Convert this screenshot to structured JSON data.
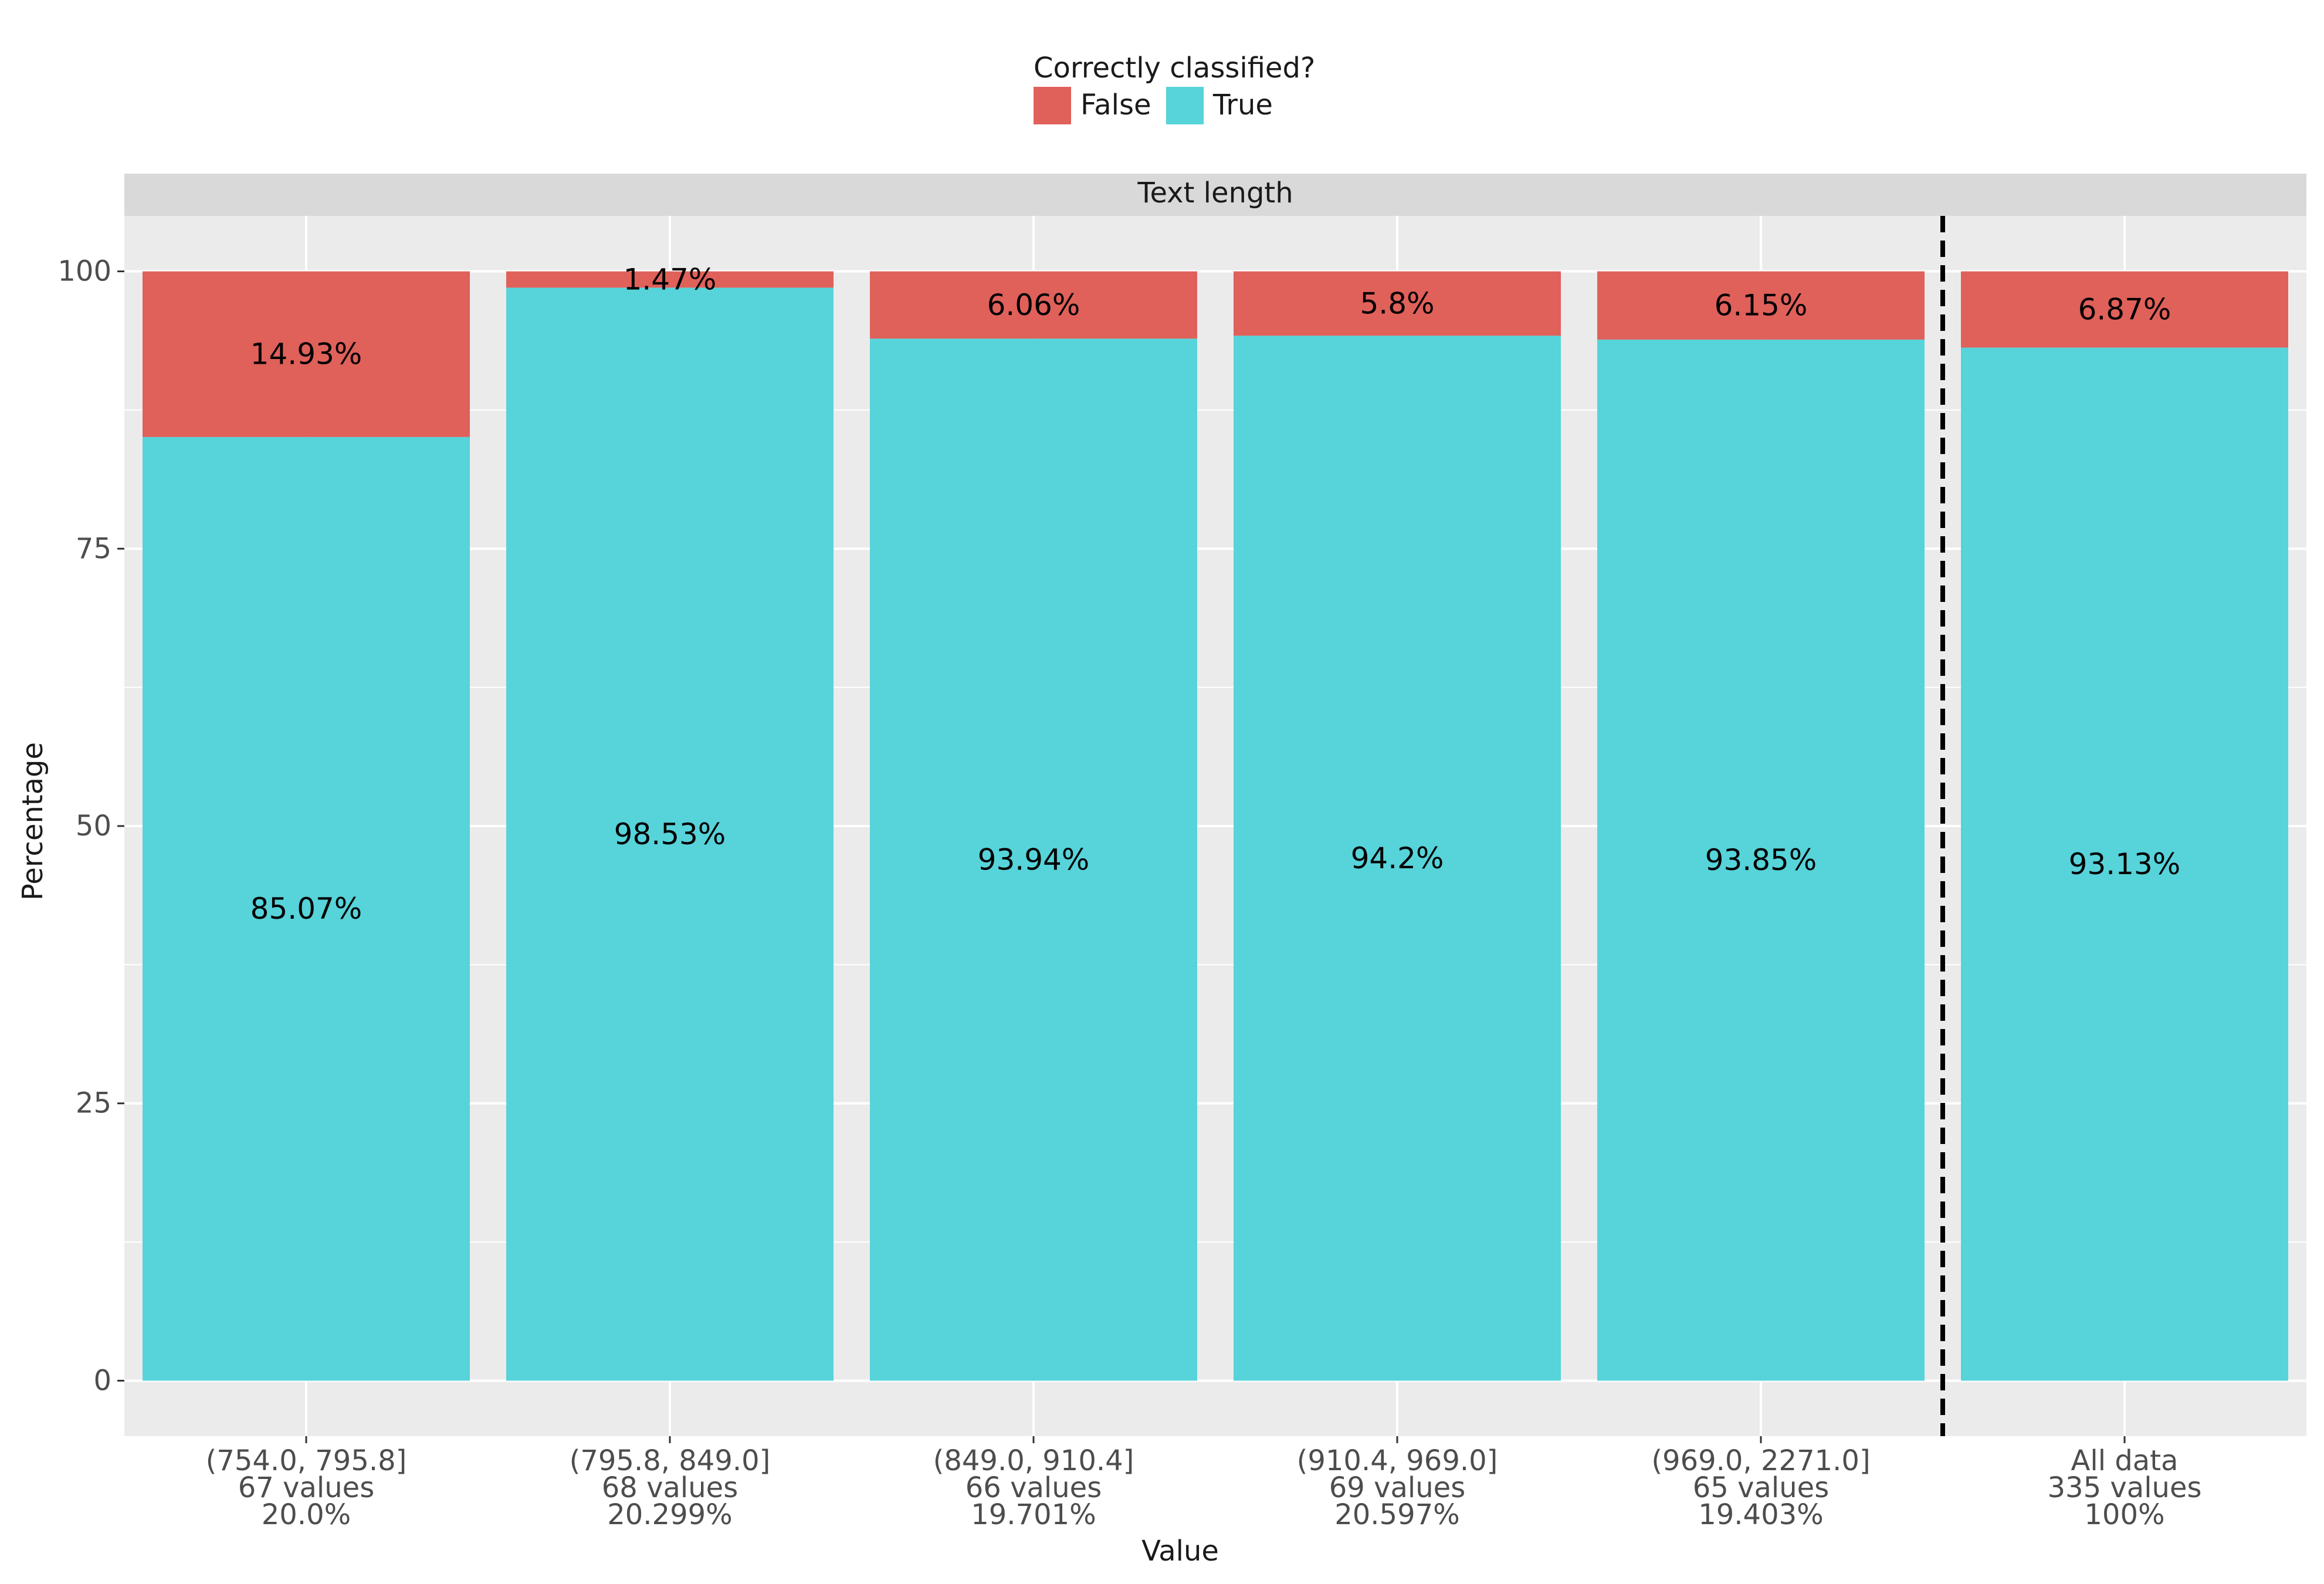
{
  "legend": {
    "title": "Correctly classified?",
    "items": [
      {
        "label": "False",
        "color": "#E0605A"
      },
      {
        "label": "True",
        "color": "#57D3DA"
      }
    ]
  },
  "facet_label": "Text length",
  "chart_data": {
    "type": "bar",
    "stacked": true,
    "title": "",
    "xlabel": "Value",
    "ylabel": "Percentage",
    "ylim": [
      -5,
      105
    ],
    "yticks": [
      0,
      25,
      50,
      75,
      100
    ],
    "grid": true,
    "legend_position": "top",
    "categories": [
      {
        "interval": "(754.0, 795.8]",
        "count": "67 values",
        "share": "20.0%"
      },
      {
        "interval": "(795.8, 849.0]",
        "count": "68 values",
        "share": "20.299%"
      },
      {
        "interval": "(849.0, 910.4]",
        "count": "66 values",
        "share": "19.701%"
      },
      {
        "interval": "(910.4, 969.0]",
        "count": "69 values",
        "share": "20.597%"
      },
      {
        "interval": "(969.0, 2271.0]",
        "count": "65 values",
        "share": "19.403%"
      },
      {
        "interval": "All data",
        "count": "335 values",
        "share": "100%"
      }
    ],
    "series": [
      {
        "name": "True",
        "color": "#57D3DA",
        "values": [
          85.07,
          98.53,
          93.94,
          94.2,
          93.85,
          93.13
        ],
        "labels": [
          "85.07%",
          "98.53%",
          "93.94%",
          "94.2%",
          "93.85%",
          "93.13%"
        ]
      },
      {
        "name": "False",
        "color": "#E0605A",
        "values": [
          14.93,
          1.47,
          6.06,
          5.8,
          6.15,
          6.87
        ],
        "labels": [
          "14.93%",
          "1.47%",
          "6.06%",
          "5.8%",
          "6.15%",
          "6.87%"
        ]
      }
    ],
    "separator_after_category": 4
  }
}
